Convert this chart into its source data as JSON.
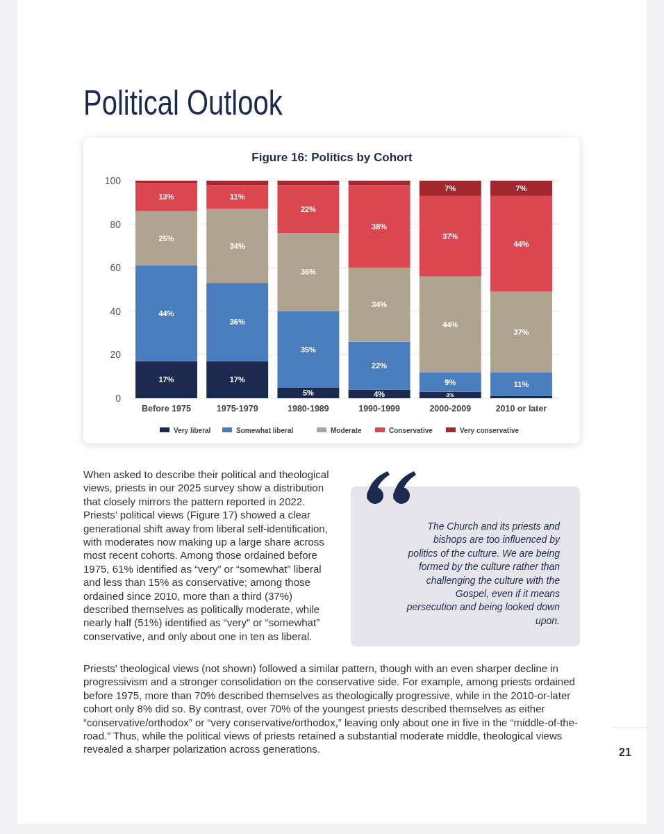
{
  "chart_data": {
    "type": "bar",
    "stacked": true,
    "title": "Figure 16: Politics by Cohort",
    "categories": [
      "Before 1975",
      "1975-1979",
      "1980-1989",
      "1990-1999",
      "2000-2009",
      "2010 or later"
    ],
    "series": [
      {
        "name": "Very liberal",
        "color": "#1b2a4e",
        "values": [
          17,
          17,
          5,
          4,
          3,
          1
        ],
        "value_labels": [
          "17%",
          "17%",
          "5%",
          "4%",
          "3%",
          null
        ]
      },
      {
        "name": "Somewhat liberal",
        "color": "#4a7dbd",
        "values": [
          44,
          36,
          35,
          22,
          9,
          11
        ],
        "value_labels": [
          "44%",
          "36%",
          "35%",
          "22%",
          "9%",
          "11%"
        ]
      },
      {
        "name": "Moderate",
        "color": "#ada38e",
        "values": [
          25,
          34,
          36,
          34,
          44,
          37
        ],
        "value_labels": [
          "25%",
          "34%",
          "36%",
          "34%",
          "44%",
          "37%"
        ]
      },
      {
        "name": "Conservative",
        "color": "#dc4650",
        "values": [
          13,
          11,
          22,
          38,
          37,
          44
        ],
        "value_labels": [
          "13%",
          "11%",
          "22%",
          "38%",
          "37%",
          "44%"
        ]
      },
      {
        "name": "Very conservative",
        "color": "#a0282e",
        "values": [
          1,
          2,
          2,
          2,
          7,
          7
        ],
        "value_labels": [
          null,
          null,
          null,
          null,
          "7%",
          "7%"
        ]
      }
    ],
    "ylim": [
      0,
      100
    ],
    "yticks": [
      0,
      20,
      40,
      60,
      80,
      100
    ],
    "grid": "y",
    "legend": "bottom",
    "annotations": [
      "Political Outlook",
      "When asked to describe their political and theological views, priests in our 2025 survey show a distribution that closely mirrors the pattern reported in 2022. Priests’ political views (Figure 17) showed a clear generational shift away from liberal self-identification, with moderates now making up a large share across most recent cohorts. Among those ordained before 1975, 61% identified as “very” or “somewhat” liberal and less than 15% as conservative; among those ordained since 2010, more than a third (37%) described themselves as politically moderate, while nearly half (51%) identified as “very” or “somewhat” conservative, and only about one in ten as liberal.",
      "The Church and its priests and bishops are too influenced by politics of the culture. We are being formed by the culture rather than challenging the culture with the Gospel, even if it means persecution and being looked down upon.",
      "Priests’ theological views (not shown) followed a similar pattern, though with an even sharper decline in progressivism and a stronger consolidation on the conservative side. For example, among priests ordained before 1975, more than 70% described themselves as theologically progressive, while in the 2010-or-later cohort only 8% did so. By contrast, over 70% of the youngest priests described themselves as either “conservative/orthodox” or “very conservative/orthodox,” leaving only about one in five in the “middle-of-the-road.” Thus, while the political views of priests retained a substantial moderate middle, theological views revealed a sharper polarization across generations.",
      "21"
    ]
  }
}
